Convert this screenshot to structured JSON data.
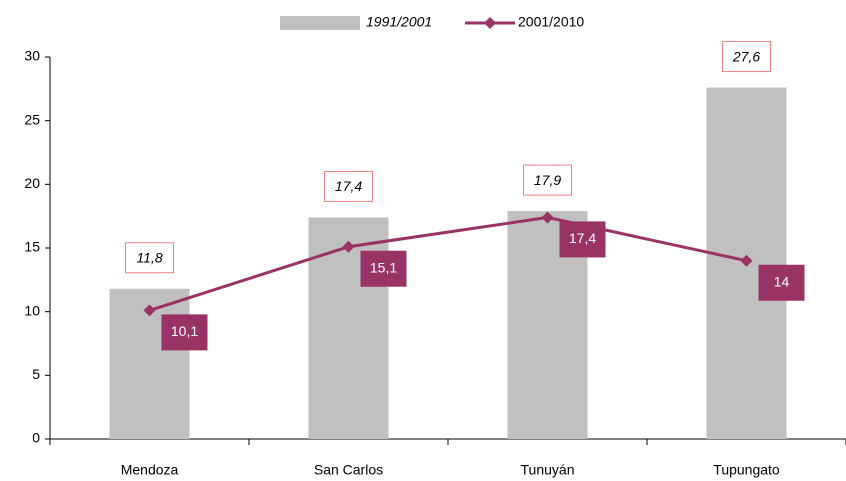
{
  "chart_data": {
    "type": "bar",
    "categories": [
      "Mendoza",
      "San Carlos",
      "Tunuyán",
      "Tupungato"
    ],
    "series": [
      {
        "name": "1991/2001",
        "type": "bar",
        "color": "#c0c0c0",
        "values": [
          11.8,
          17.4,
          17.9,
          27.6
        ],
        "value_labels": [
          "11,8",
          "17,4",
          "17,9",
          "27,6"
        ]
      },
      {
        "name": "2001/2010",
        "type": "line",
        "color": "#993366",
        "values": [
          10.1,
          15.1,
          17.4,
          14
        ],
        "value_labels": [
          "10,1",
          "15,1",
          "17,4",
          "14"
        ]
      }
    ],
    "ylim": [
      0,
      30
    ],
    "yticks": [
      0,
      5,
      10,
      15,
      20,
      25,
      30
    ],
    "grid": false,
    "legend": "top"
  }
}
